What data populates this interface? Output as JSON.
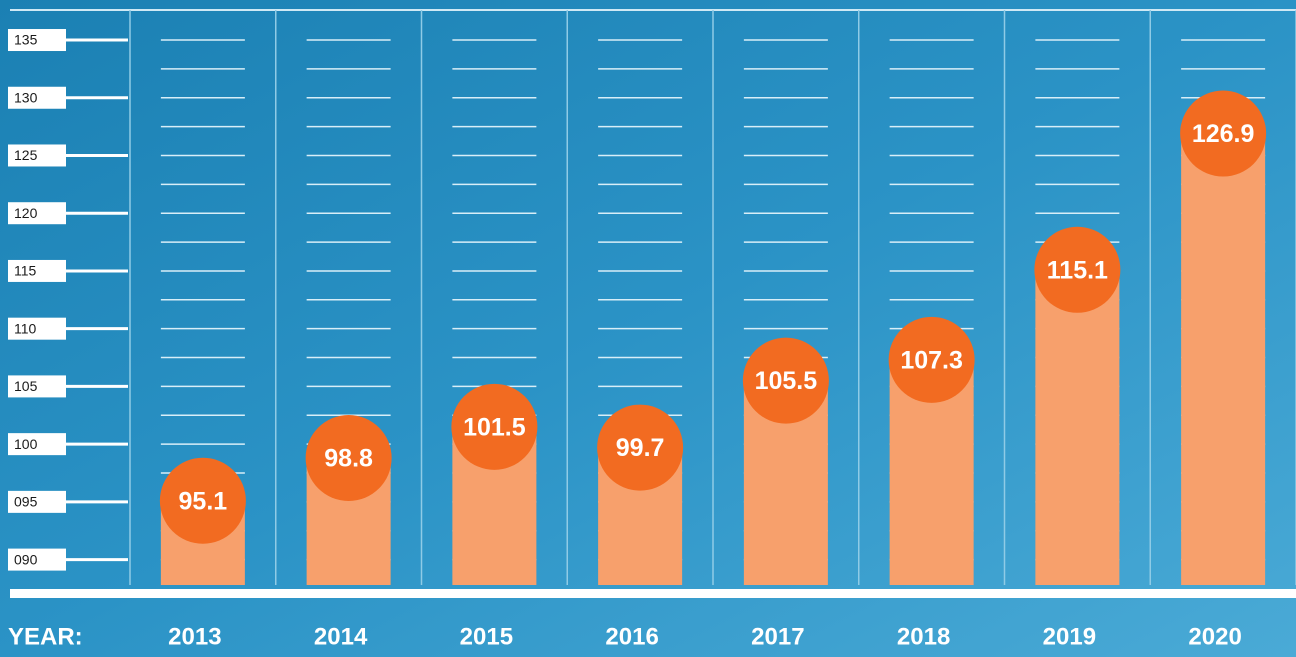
{
  "chart_data": {
    "type": "bar",
    "xlabel": "YEAR:",
    "categories": [
      "2013",
      "2014",
      "2015",
      "2016",
      "2017",
      "2018",
      "2019",
      "2020"
    ],
    "values": [
      95.1,
      98.8,
      101.5,
      99.7,
      105.5,
      107.3,
      115.1,
      126.9
    ],
    "color": "#f7a06c",
    "marker_color": "#f26b21",
    "ylim": [
      87.8,
      137.6
    ],
    "yticks": [
      {
        "value": 90,
        "label": "090"
      },
      {
        "value": 95,
        "label": "095"
      },
      100,
      105,
      110,
      115,
      120,
      125,
      130,
      135
    ],
    "grid": true
  }
}
